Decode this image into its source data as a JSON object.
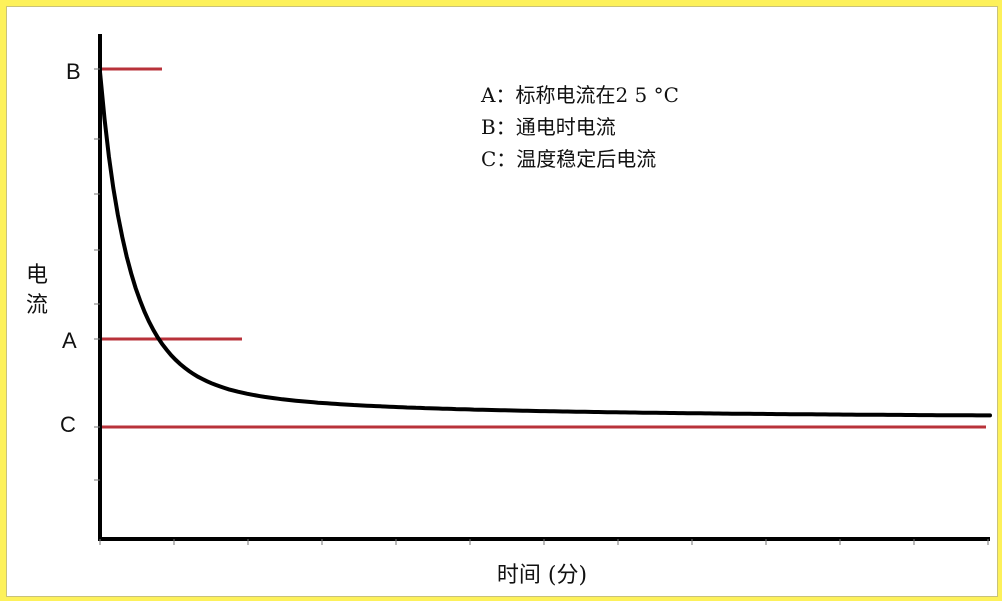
{
  "colors": {
    "frame": "#fdf15a",
    "curve": "#000000",
    "reference_lines": "#b8323a",
    "axis": "#000000"
  },
  "chart_data": {
    "type": "line",
    "title": "",
    "xlabel": "时间 (分)",
    "ylabel": "电流",
    "grid": false,
    "legend_position": "top-right",
    "legend": [
      "A：标称电流在2 5 °C",
      "B：通电时电流",
      "C：温度稳定后电流"
    ],
    "y_tick_labels": [
      "B",
      "A",
      "C"
    ],
    "series": [
      {
        "name": "",
        "description": "电流随时间衰减曲线"
      }
    ],
    "reference_levels": [
      {
        "label": "B",
        "value": "峰值"
      },
      {
        "label": "A",
        "value": "标称"
      },
      {
        "label": "C",
        "value": "稳定"
      }
    ]
  }
}
